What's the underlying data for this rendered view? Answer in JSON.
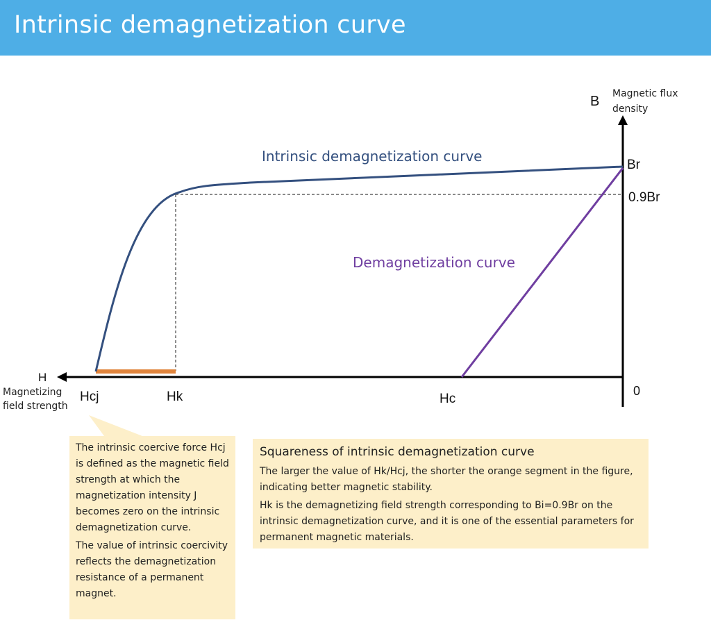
{
  "header": {
    "title": "Intrinsic demagnetization curve"
  },
  "diagram": {
    "y_axis_symbol": "B",
    "y_axis_label_line1": "Magnetic flux",
    "y_axis_label_line2": "density",
    "x_axis_symbol": "H",
    "x_axis_label_line1": "Magnetizing",
    "x_axis_label_line2": "field strength",
    "origin": "0",
    "br": "Br",
    "br09": "0.9Br",
    "hcj": "Hcj",
    "hk": "Hk",
    "hc": "Hc",
    "intrinsic_curve_label": "Intrinsic demagnetization curve",
    "demag_curve_label": "Demagnetization curve",
    "colors": {
      "intrinsic": "#34507f",
      "demag": "#6f3ea0",
      "segment": "#e0843c",
      "note_bg": "#fdefc9",
      "header": "#4eaee6"
    }
  },
  "left_note": {
    "p1": "The intrinsic coercive force Hcj is defined as the magnetic field strength at which the magnetization intensity J becomes zero on the intrinsic demagnetization curve.",
    "p2": "The value of intrinsic coercivity reflects the demagnetization resistance of a permanent magnet."
  },
  "right_note": {
    "title": "Squareness of intrinsic demagnetization curve",
    "p1": "The larger the value of Hk/Hcj, the shorter the orange segment in the figure, indicating better magnetic stability.",
    "p2": "Hk is the demagnetizing field strength corresponding to Bi=0.9Br on the intrinsic demagnetization curve, and it is one of the essential parameters for permanent magnetic materials."
  }
}
